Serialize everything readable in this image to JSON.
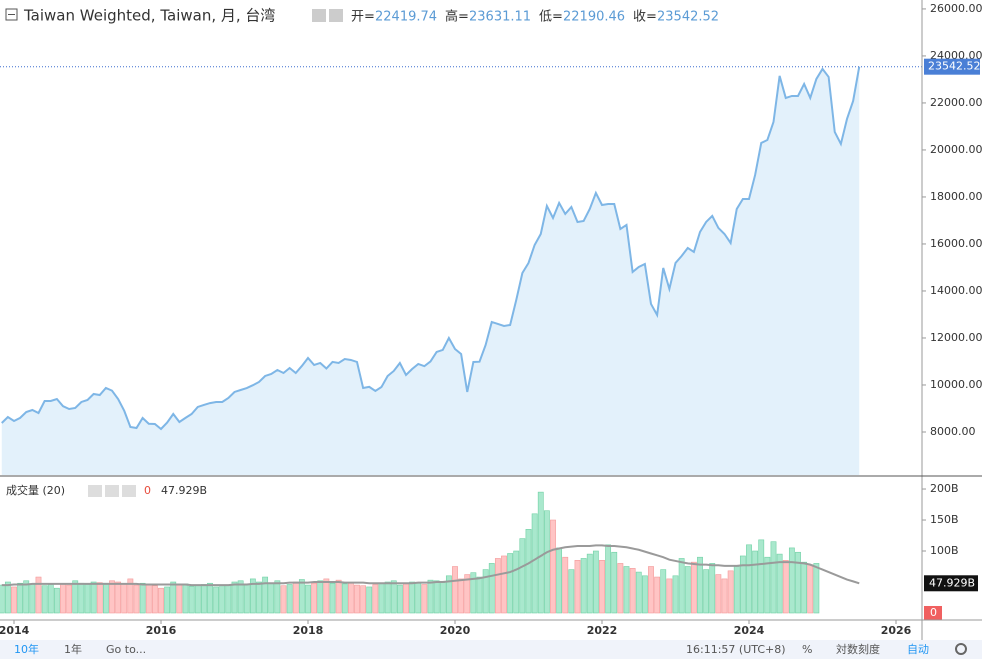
{
  "header": {
    "title": "Taiwan Weighted, Taiwan, 月, 台湾",
    "open_label": "开=",
    "open": 22419.74,
    "high_label": "高=",
    "high": 23631.11,
    "low_label": "低=",
    "low": 22190.46,
    "close_label": "收=",
    "close": 23542.52
  },
  "volume_header": "成交量 (20)",
  "chart_data": [
    {
      "type": "area",
      "color": "#7eb6e6",
      "fill": "#e3f1fb",
      "categories": [
        null,
        null,
        "2014",
        null,
        null,
        null,
        null,
        null,
        null,
        null,
        null,
        null,
        null,
        null,
        null,
        null,
        null,
        null,
        null,
        null,
        null,
        null,
        null,
        null,
        null,
        null,
        "2016",
        null,
        null,
        null,
        null,
        null,
        null,
        null,
        null,
        null,
        null,
        null,
        null,
        null,
        null,
        null,
        null,
        null,
        null,
        null,
        null,
        null,
        null,
        null,
        "2018",
        null,
        null,
        null,
        null,
        null,
        null,
        null,
        null,
        null,
        null,
        null,
        null,
        null,
        null,
        null,
        null,
        null,
        null,
        null,
        null,
        null,
        null,
        null,
        "2020",
        null,
        null,
        null,
        null,
        null,
        null,
        null,
        null,
        null,
        null,
        null,
        null,
        null,
        null,
        null,
        null,
        null,
        null,
        null,
        null,
        null,
        null,
        null,
        "2022",
        null,
        null,
        null,
        null,
        null,
        null,
        null,
        null,
        null,
        null,
        null,
        null,
        null,
        null,
        null,
        null,
        null,
        null,
        null,
        null,
        null,
        null,
        null,
        "2024",
        null,
        null,
        null,
        null,
        null,
        null,
        null,
        null,
        null,
        null,
        null,
        null,
        null,
        null,
        null,
        null,
        null,
        null,
        null,
        null,
        null,
        null,
        null,
        "2026"
      ],
      "values": [
        8383,
        8638,
        8468,
        8600,
        8850,
        8936,
        8808,
        9319,
        9320,
        9404,
        9100,
        8979,
        9021,
        9277,
        9362,
        9617,
        9574,
        9872,
        9760,
        9400,
        8900,
        8213,
        8170,
        8596,
        8350,
        8340,
        8128,
        8400,
        8766,
        8426,
        8600,
        8766,
        9064,
        9150,
        9230,
        9277,
        9277,
        9447,
        9702,
        9787,
        9870,
        9990,
        10128,
        10383,
        10468,
        10638,
        10511,
        10723,
        10511,
        10809,
        11149,
        10851,
        10936,
        10700,
        10980,
        10936,
        11106,
        11064,
        10979,
        9872,
        9920,
        9745,
        9915,
        10383,
        10596,
        10936,
        10426,
        10681,
        10894,
        10800,
        11000,
        11404,
        11489,
        12000,
        11532,
        11319,
        9702,
        10979,
        10990,
        11702,
        12681,
        12596,
        12511,
        12553,
        13617,
        14766,
        15191,
        15957,
        16425,
        17617,
        17106,
        17745,
        17277,
        17574,
        16936,
        16979,
        17489,
        18170,
        17659,
        17702,
        17702,
        16638,
        16808,
        14808,
        15021,
        15149,
        13447,
        12979,
        14979,
        14085,
        15191,
        15489,
        15830,
        15659,
        16510,
        16936,
        17191,
        16681,
        16425,
        16042,
        17489,
        17915,
        17915,
        18936,
        20298,
        20425,
        21191,
        23149,
        22213,
        22298,
        22298,
        22809,
        22213,
        23021,
        23447,
        23106,
        20766,
        20255,
        21319,
        22085,
        23542.52,
        null,
        null,
        null,
        null,
        null,
        null
      ],
      "ylim": [
        6170,
        26380
      ],
      "yticks": [
        {
          "value": 8000,
          "label": "8000.00"
        },
        {
          "value": 10000,
          "label": "10000.00"
        },
        {
          "value": 12000,
          "label": "12000.00"
        },
        {
          "value": 14000,
          "label": "14000.00"
        },
        {
          "value": 16000,
          "label": "16000.00"
        },
        {
          "value": 18000,
          "label": "18000.00"
        },
        {
          "value": 20000,
          "label": "20000.00"
        },
        {
          "value": 22000,
          "label": "22000.00"
        },
        {
          "value": 24000,
          "label": "24000.00"
        },
        {
          "value": 26000,
          "label": "26000.00"
        }
      ],
      "grid": false
    },
    {
      "type": "bar",
      "up_color": "#a9e8cd",
      "down_color": "#ffc4c4",
      "series": [
        {
          "type": "bar",
          "values": [
            45,
            50,
            42,
            48,
            52,
            47,
            58,
            44,
            46,
            40,
            47,
            45,
            52,
            48,
            46,
            50,
            49,
            48,
            52,
            50,
            47,
            55,
            45,
            48,
            46,
            44,
            40,
            42,
            50,
            45,
            47,
            43,
            44,
            46,
            48,
            42,
            44,
            45,
            50,
            52,
            47,
            55,
            50,
            58,
            48,
            52,
            44,
            46,
            50,
            54,
            45,
            48,
            52,
            55,
            48,
            53,
            47,
            49,
            45,
            44,
            42,
            46,
            48,
            50,
            52,
            45,
            47,
            50,
            48,
            46,
            53,
            52,
            49,
            60,
            75,
            55,
            62,
            65,
            58,
            70,
            80,
            88,
            92,
            96,
            100,
            120,
            135,
            160,
            195,
            165,
            150,
            105,
            90,
            70,
            85,
            88,
            95,
            100,
            85,
            110,
            98,
            80,
            75,
            72,
            66,
            60,
            75,
            58,
            70,
            55,
            60,
            88,
            75,
            82,
            90,
            70,
            80,
            62,
            55,
            68,
            75,
            92,
            110,
            100,
            118,
            90,
            115,
            95,
            85,
            105,
            98,
            82,
            78,
            80,
            0,
            0,
            0,
            0,
            0,
            0,
            0,
            null,
            null,
            null,
            null,
            null,
            null
          ]
        },
        {
          "type": "line",
          "color": "#9a9a9a",
          "values": [
            45,
            45,
            46,
            46,
            46,
            47,
            47,
            47,
            47,
            47,
            47,
            47,
            47,
            47,
            47,
            47,
            47,
            47,
            47,
            47,
            47,
            47,
            47,
            46,
            46,
            46,
            46,
            46,
            46,
            46,
            46,
            45,
            45,
            45,
            45,
            45,
            45,
            45,
            46,
            46,
            46,
            47,
            47,
            48,
            48,
            48,
            48,
            49,
            49,
            49,
            49,
            50,
            50,
            50,
            50,
            50,
            49,
            49,
            49,
            49,
            48,
            48,
            48,
            48,
            48,
            48,
            48,
            48,
            49,
            49,
            49,
            50,
            50,
            51,
            52,
            53,
            54,
            55,
            56,
            58,
            60,
            62,
            64,
            66,
            70,
            75,
            80,
            86,
            92,
            98,
            102,
            104,
            106,
            107,
            108,
            108,
            108,
            109,
            109,
            108,
            108,
            107,
            106,
            104,
            102,
            99,
            96,
            93,
            90,
            86,
            84,
            82,
            80,
            79,
            78,
            78,
            77,
            77,
            76,
            76,
            76,
            77,
            77,
            78,
            79,
            80,
            81,
            82,
            82,
            82,
            81,
            80,
            78,
            74,
            70,
            66,
            62,
            58,
            54,
            51,
            47.929,
            null,
            null,
            null,
            null,
            null,
            null
          ],
          "value_labels": [
            null,
            null,
            null,
            null,
            null,
            null,
            null,
            null,
            null,
            null,
            null,
            null,
            null,
            null,
            null,
            null,
            null,
            null,
            null,
            null,
            null,
            null,
            null,
            null,
            null,
            null,
            null,
            null,
            null,
            null,
            null,
            null,
            null,
            null,
            null,
            null,
            null,
            null,
            null,
            null,
            null,
            null,
            null,
            null,
            null,
            null,
            null,
            null,
            null,
            null,
            null,
            null,
            null,
            null,
            null,
            null,
            null,
            null,
            null,
            null,
            null,
            null,
            null,
            null,
            null,
            null,
            null,
            null,
            null,
            null,
            null,
            null,
            null,
            null,
            null,
            null,
            null,
            null,
            null,
            null,
            null,
            null,
            null,
            null,
            null,
            null,
            null,
            null,
            null,
            null,
            null,
            null,
            null,
            null,
            null,
            null,
            null,
            null,
            null,
            null,
            null,
            null,
            null,
            null,
            null,
            null,
            null,
            null,
            null,
            null,
            null,
            null,
            null,
            null,
            null,
            null,
            null,
            null,
            null,
            null,
            null,
            null,
            null,
            null,
            null,
            null,
            null,
            null,
            null,
            null,
            null,
            null,
            null,
            null,
            null,
            null,
            null,
            null,
            null,
            null,
            "47.929B",
            null,
            null,
            null,
            null,
            null,
            null
          ]
        }
      ],
      "ylim": [
        -11.3,
        219.4
      ],
      "yticks": [
        {
          "value": 100,
          "label": "100B"
        },
        {
          "value": 150,
          "label": "150B"
        },
        {
          "value": 200,
          "label": "200B"
        }
      ]
    }
  ],
  "toolbar": {
    "range_10y": "10年",
    "range_1y": "1年",
    "goto": "Go to...",
    "clock": "16:11:57 (UTC+8)",
    "percent": "%",
    "log": "対数刻度",
    "auto": "自动"
  }
}
